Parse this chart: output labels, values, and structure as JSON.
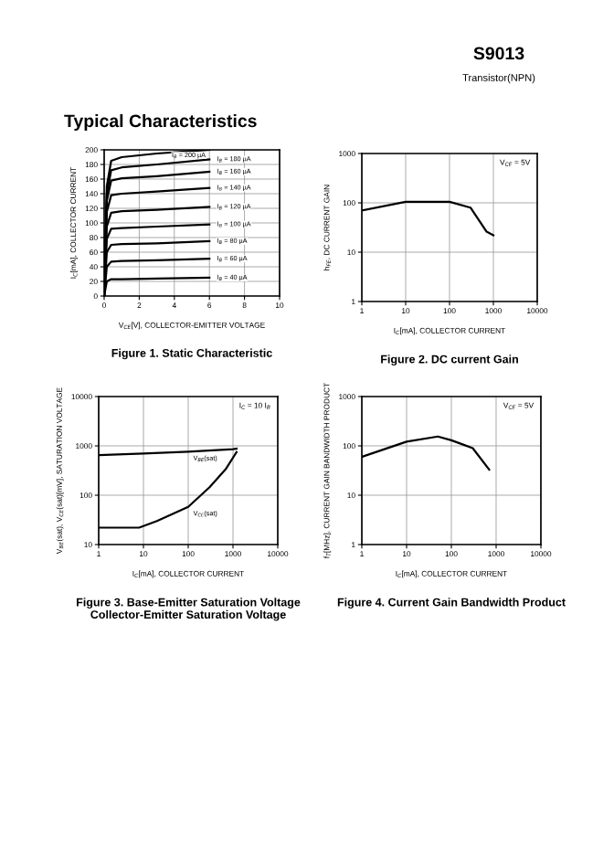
{
  "chart_data": [
    {
      "type": "other",
      "title": "S9013",
      "subtitle": "Transistor(NPN)",
      "annotations": [
        "Typical Characteristics"
      ]
    },
    {
      "type": "line",
      "title": "Figure 1. Static Characteristic",
      "xlabel": "V$_{CE}$[V], COLLECTOR-EMITTER VOLTAGE",
      "ylabel": "I$_{C}$[mA], COLLECTOR CURRENT",
      "x": [
        0,
        0.15,
        0.4,
        1,
        3,
        6
      ],
      "series": [
        {
          "name": "I$_{B}$ = 200 µA",
          "color": "#000000",
          "values": [
            0,
            150,
            185,
            190,
            195,
            200
          ]
        },
        {
          "name": "I$_{B}$ = 180 µA",
          "color": "#000000",
          "values": [
            0,
            140,
            172,
            176,
            180,
            187
          ]
        },
        {
          "name": "I$_{B}$ = 160 µA",
          "color": "#000000",
          "values": [
            0,
            130,
            158,
            161,
            164,
            170
          ]
        },
        {
          "name": "I$_{B}$ = 140 µA",
          "color": "#000000",
          "values": [
            0,
            115,
            138,
            140,
            143,
            148
          ]
        },
        {
          "name": "I$_{B}$ = 120 µA",
          "color": "#000000",
          "values": [
            0,
            95,
            114,
            116,
            118,
            122
          ]
        },
        {
          "name": "I$_{B}$ = 100 µA",
          "color": "#000000",
          "values": [
            0,
            78,
            92,
            93,
            95,
            98
          ]
        },
        {
          "name": "I$_{B}$ = 80 µA",
          "color": "#000000",
          "values": [
            0,
            60,
            70,
            71,
            72,
            75
          ]
        },
        {
          "name": "I$_{B}$ = 60 µA",
          "color": "#000000",
          "values": [
            0,
            40,
            47,
            48,
            49,
            51
          ]
        },
        {
          "name": "I$_{B}$ = 40 µA",
          "color": "#000000",
          "values": [
            0,
            20,
            23,
            23,
            24,
            25
          ]
        }
      ],
      "xlim": [
        0,
        10
      ],
      "xticks": [
        0,
        2,
        4,
        6,
        8,
        10
      ],
      "ylim": [
        0,
        200
      ],
      "yticks": [
        0,
        20,
        40,
        60,
        80,
        100,
        120,
        140,
        160,
        180,
        200
      ],
      "grid": true
    },
    {
      "type": "line",
      "title": "Figure 2. DC current Gain",
      "xlabel": "I$_{C}$[mA], COLLECTOR CURRENT",
      "ylabel": "h$_{FE}$, DC CURRENT GAIN",
      "annotations": [
        "V$_{CE}$ = 5V"
      ],
      "x": [
        1,
        10,
        100,
        300,
        700,
        1000
      ],
      "series": [
        {
          "color": "#000000",
          "values": [
            70,
            105,
            105,
            80,
            26,
            22
          ]
        }
      ],
      "log": "xy",
      "xlim": [
        1,
        10000
      ],
      "xticks": [
        1,
        10,
        100,
        1000,
        10000
      ],
      "ylim": [
        1,
        1000
      ],
      "yticks": [
        1,
        10,
        100,
        1000
      ],
      "grid": true
    },
    {
      "type": "line",
      "title": "Figure 3. Base-Emitter Saturation Voltage\nCollector-Emitter Saturation Voltage",
      "xlabel": "I$_{C}$[mA], COLLECTOR CURRENT",
      "ylabel": "V$_{BE}$(sat), V$_{CE}$(sat)[mV], SATURATION VOLTAGE",
      "annotations": [
        "I$_{C}$ = 10 I$_{B}$"
      ],
      "series": [
        {
          "name": "V$_{BE}$(sat)",
          "color": "#000000",
          "x": [
            1,
            10,
            100,
            1000,
            1200
          ],
          "values": [
            650,
            700,
            760,
            860,
            880
          ]
        },
        {
          "name": "V$_{CE}$(sat)",
          "color": "#000000",
          "x": [
            1,
            8,
            20,
            100,
            300,
            700,
            1200
          ],
          "values": [
            22,
            22,
            30,
            58,
            145,
            345,
            750
          ]
        }
      ],
      "log": "xy",
      "xlim": [
        1,
        10000
      ],
      "xticks": [
        1,
        10,
        100,
        1000,
        10000
      ],
      "ylim": [
        10,
        10000
      ],
      "yticks": [
        10,
        100,
        1000,
        10000
      ],
      "grid": true
    },
    {
      "type": "line",
      "title": "Figure 4. Current Gain Bandwidth Product",
      "xlabel": "I$_{C}$[mA], COLLECTOR CURRENT",
      "ylabel": "f$_{T}$[MHz], CURRENT GAIN BANDWIDTH PRODUCT",
      "annotations": [
        "V$_{CE}$ = 5V"
      ],
      "x": [
        1,
        10,
        50,
        100,
        300,
        700
      ],
      "series": [
        {
          "color": "#000000",
          "values": [
            60,
            122,
            155,
            130,
            90,
            33
          ]
        }
      ],
      "log": "xy",
      "xlim": [
        1,
        10000
      ],
      "xticks": [
        1,
        10,
        100,
        1000,
        10000
      ],
      "ylim": [
        1,
        1000
      ],
      "yticks": [
        1,
        10,
        100,
        1000
      ],
      "grid": true
    }
  ]
}
